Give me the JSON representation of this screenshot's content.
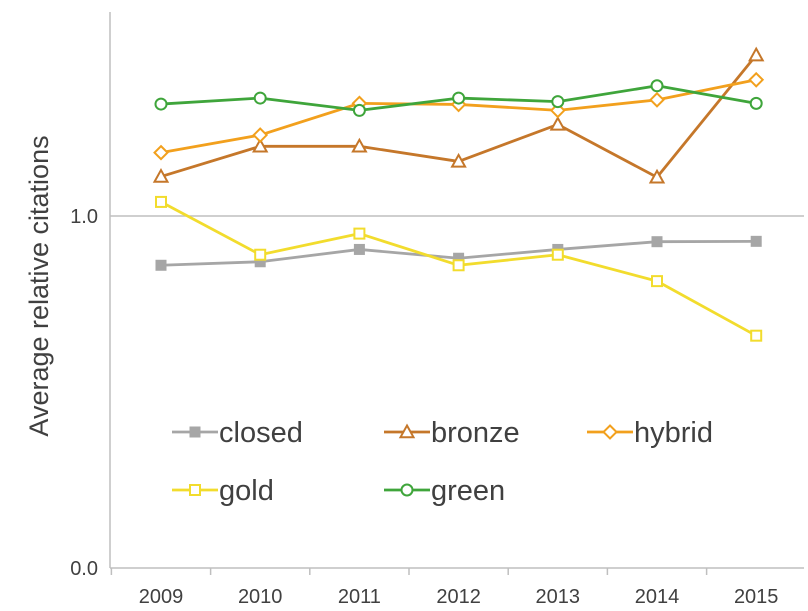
{
  "chart_data": {
    "type": "line",
    "title": "",
    "xlabel": "",
    "ylabel": "Average relative citations",
    "x": [
      "2009",
      "2010",
      "2011",
      "2012",
      "2013",
      "2014",
      "2015"
    ],
    "ylim": [
      0.0,
      1.5
    ],
    "yticks": [
      {
        "value": 0.0,
        "label": "0.0"
      },
      {
        "value": 1.0,
        "label": "1.0"
      }
    ],
    "grid": "horizontal line at 1.0",
    "legend_position": "inside, lower middle",
    "series": [
      {
        "name": "closed",
        "color": "#a6a6a6",
        "marker": "square-filled",
        "values": [
          0.86,
          0.87,
          0.905,
          0.88,
          0.905,
          0.927,
          0.928
        ]
      },
      {
        "name": "bronze",
        "color": "#c5772a",
        "marker": "triangle-open",
        "values": [
          1.112,
          1.198,
          1.198,
          1.155,
          1.26,
          1.11,
          1.457
        ]
      },
      {
        "name": "hybrid",
        "color": "#f2a01d",
        "marker": "diamond-open",
        "values": [
          1.18,
          1.23,
          1.32,
          1.317,
          1.3,
          1.33,
          1.387
        ]
      },
      {
        "name": "gold",
        "color": "#f2dc2d",
        "marker": "square-open",
        "values": [
          1.04,
          0.89,
          0.95,
          0.86,
          0.89,
          0.815,
          0.66
        ]
      },
      {
        "name": "green",
        "color": "#3fa53b",
        "marker": "circle-open",
        "values": [
          1.318,
          1.335,
          1.3,
          1.335,
          1.325,
          1.37,
          1.32
        ]
      }
    ],
    "legend": [
      {
        "series": "closed"
      },
      {
        "series": "bronze"
      },
      {
        "series": "hybrid"
      },
      {
        "series": "gold"
      },
      {
        "series": "green"
      }
    ]
  }
}
